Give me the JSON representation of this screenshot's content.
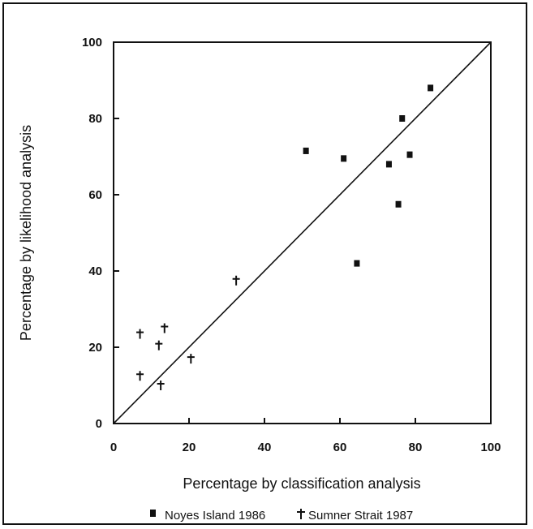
{
  "chart_data": {
    "type": "scatter",
    "xlabel": "Percentage by classification analysis",
    "ylabel": "Percentage by likelihood analysis",
    "xlim": [
      0,
      100
    ],
    "ylim": [
      0,
      100
    ],
    "x_ticks": [
      "0",
      "20",
      "40",
      "60",
      "80",
      "100"
    ],
    "y_ticks": [
      "0",
      "20",
      "40",
      "60",
      "80",
      "100"
    ],
    "grid": false,
    "reference_line": {
      "from": [
        0,
        0
      ],
      "to": [
        100,
        100
      ]
    },
    "legend_position": "bottom",
    "series": [
      {
        "name": "Noyes Island 1986",
        "marker": "square",
        "points": [
          [
            51,
            71.5
          ],
          [
            61,
            69.5
          ],
          [
            64.5,
            42
          ],
          [
            73,
            68
          ],
          [
            75.5,
            57.5
          ],
          [
            76.5,
            80
          ],
          [
            78.5,
            70.5
          ],
          [
            84,
            88
          ]
        ]
      },
      {
        "name": "Sumner Strait 1987",
        "marker": "cross",
        "points": [
          [
            7,
            23.5
          ],
          [
            7,
            12.5
          ],
          [
            12,
            20.5
          ],
          [
            12.5,
            10
          ],
          [
            13.5,
            25
          ],
          [
            20.5,
            17
          ],
          [
            32.5,
            37.5
          ]
        ]
      }
    ]
  }
}
